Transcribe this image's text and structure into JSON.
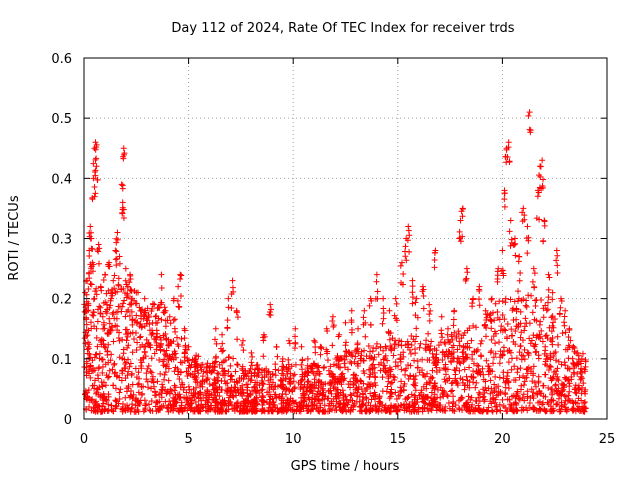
{
  "chart_data": {
    "type": "scatter",
    "title": "Day 112 of 2024, Rate Of TEC Index for receiver trds",
    "xlabel": "GPS time / hours",
    "ylabel": "ROTI / TECUs",
    "xlim": [
      0,
      25
    ],
    "ylim": [
      0,
      0.6
    ],
    "xticks": [
      0,
      5,
      10,
      15,
      20,
      25
    ],
    "xtick_labels": [
      "0",
      "5",
      "10",
      "15",
      "20",
      "25"
    ],
    "yticks": [
      0,
      0.1,
      0.2,
      0.3,
      0.4,
      0.5,
      0.6
    ],
    "ytick_labels": [
      "0",
      "0.1",
      "0.2",
      "0.3",
      "0.4",
      "0.5",
      "0.6"
    ],
    "grid": true,
    "marker": "+",
    "series": [
      {
        "name": "ROTI",
        "color": "#ff0000",
        "points": [
          [
            0.05,
            0.21
          ],
          [
            0.1,
            0.18
          ],
          [
            0.15,
            0.23
          ],
          [
            0.2,
            0.12
          ],
          [
            0.25,
            0.28
          ],
          [
            0.3,
            0.32
          ],
          [
            0.35,
            0.3
          ],
          [
            0.4,
            0.26
          ],
          [
            0.45,
            0.4
          ],
          [
            0.5,
            0.45
          ],
          [
            0.55,
            0.46
          ],
          [
            0.6,
            0.42
          ],
          [
            0.5,
            0.2
          ],
          [
            0.6,
            0.15
          ],
          [
            0.7,
            0.29
          ],
          [
            0.8,
            0.22
          ],
          [
            0.9,
            0.17
          ],
          [
            1.0,
            0.24
          ],
          [
            1.1,
            0.19
          ],
          [
            1.2,
            0.26
          ],
          [
            1.3,
            0.2
          ],
          [
            1.4,
            0.23
          ],
          [
            1.5,
            0.28
          ],
          [
            1.6,
            0.31
          ],
          [
            1.7,
            0.27
          ],
          [
            1.8,
            0.39
          ],
          [
            1.85,
            0.36
          ],
          [
            1.9,
            0.45
          ],
          [
            2.0,
            0.25
          ],
          [
            2.1,
            0.22
          ],
          [
            2.2,
            0.24
          ],
          [
            2.3,
            0.2
          ],
          [
            2.5,
            0.21
          ],
          [
            2.7,
            0.18
          ],
          [
            2.9,
            0.2
          ],
          [
            3.1,
            0.17
          ],
          [
            3.3,
            0.19
          ],
          [
            3.5,
            0.16
          ],
          [
            3.7,
            0.24
          ],
          [
            3.9,
            0.18
          ],
          [
            4.1,
            0.17
          ],
          [
            4.3,
            0.2
          ],
          [
            4.5,
            0.22
          ],
          [
            4.6,
            0.24
          ],
          [
            4.8,
            0.15
          ],
          [
            5.0,
            0.12
          ],
          [
            5.3,
            0.1
          ],
          [
            5.6,
            0.09
          ],
          [
            6.0,
            0.08
          ],
          [
            6.3,
            0.15
          ],
          [
            6.6,
            0.14
          ],
          [
            6.9,
            0.2
          ],
          [
            7.1,
            0.23
          ],
          [
            7.3,
            0.18
          ],
          [
            7.6,
            0.13
          ],
          [
            8.0,
            0.11
          ],
          [
            8.3,
            0.09
          ],
          [
            8.6,
            0.14
          ],
          [
            8.9,
            0.19
          ],
          [
            9.2,
            0.12
          ],
          [
            9.5,
            0.1
          ],
          [
            9.8,
            0.13
          ],
          [
            10.1,
            0.15
          ],
          [
            10.4,
            0.12
          ],
          [
            10.7,
            0.1
          ],
          [
            11.0,
            0.13
          ],
          [
            11.3,
            0.12
          ],
          [
            11.6,
            0.15
          ],
          [
            11.9,
            0.17
          ],
          [
            12.2,
            0.14
          ],
          [
            12.5,
            0.16
          ],
          [
            12.8,
            0.18
          ],
          [
            13.1,
            0.15
          ],
          [
            13.4,
            0.18
          ],
          [
            13.7,
            0.2
          ],
          [
            14.0,
            0.24
          ],
          [
            14.3,
            0.2
          ],
          [
            14.6,
            0.18
          ],
          [
            14.9,
            0.2
          ],
          [
            15.2,
            0.26
          ],
          [
            15.4,
            0.3
          ],
          [
            15.5,
            0.32
          ],
          [
            15.7,
            0.23
          ],
          [
            15.9,
            0.2
          ],
          [
            16.2,
            0.22
          ],
          [
            16.5,
            0.19
          ],
          [
            16.8,
            0.28
          ],
          [
            17.1,
            0.17
          ],
          [
            17.4,
            0.15
          ],
          [
            17.7,
            0.18
          ],
          [
            18.0,
            0.33
          ],
          [
            18.1,
            0.35
          ],
          [
            18.3,
            0.25
          ],
          [
            18.6,
            0.2
          ],
          [
            18.9,
            0.22
          ],
          [
            19.2,
            0.18
          ],
          [
            19.5,
            0.2
          ],
          [
            19.8,
            0.25
          ],
          [
            20.0,
            0.28
          ],
          [
            20.1,
            0.38
          ],
          [
            20.2,
            0.45
          ],
          [
            20.3,
            0.46
          ],
          [
            20.4,
            0.33
          ],
          [
            20.6,
            0.3
          ],
          [
            20.8,
            0.27
          ],
          [
            21.0,
            0.35
          ],
          [
            21.2,
            0.32
          ],
          [
            21.3,
            0.51
          ],
          [
            21.5,
            0.25
          ],
          [
            21.7,
            0.38
          ],
          [
            21.8,
            0.42
          ],
          [
            21.9,
            0.43
          ],
          [
            22.0,
            0.33
          ],
          [
            22.2,
            0.24
          ],
          [
            22.4,
            0.21
          ],
          [
            22.6,
            0.28
          ],
          [
            22.8,
            0.2
          ],
          [
            23.0,
            0.18
          ],
          [
            23.2,
            0.15
          ],
          [
            23.4,
            0.12
          ],
          [
            23.6,
            0.11
          ],
          [
            23.8,
            0.1
          ]
        ],
        "envelope": [
          [
            0,
            0.2
          ],
          [
            1,
            0.17
          ],
          [
            2,
            0.19
          ],
          [
            3,
            0.16
          ],
          [
            4,
            0.15
          ],
          [
            5,
            0.09
          ],
          [
            6,
            0.07
          ],
          [
            7,
            0.08
          ],
          [
            8,
            0.07
          ],
          [
            9,
            0.06
          ],
          [
            10,
            0.07
          ],
          [
            11,
            0.07
          ],
          [
            12,
            0.08
          ],
          [
            13,
            0.09
          ],
          [
            14,
            0.1
          ],
          [
            15,
            0.11
          ],
          [
            16,
            0.11
          ],
          [
            17,
            0.1
          ],
          [
            18,
            0.12
          ],
          [
            19,
            0.13
          ],
          [
            20,
            0.17
          ],
          [
            21,
            0.18
          ],
          [
            22,
            0.16
          ],
          [
            23,
            0.11
          ],
          [
            24,
            0.08
          ]
        ],
        "x_range": [
          0,
          24
        ]
      }
    ]
  }
}
